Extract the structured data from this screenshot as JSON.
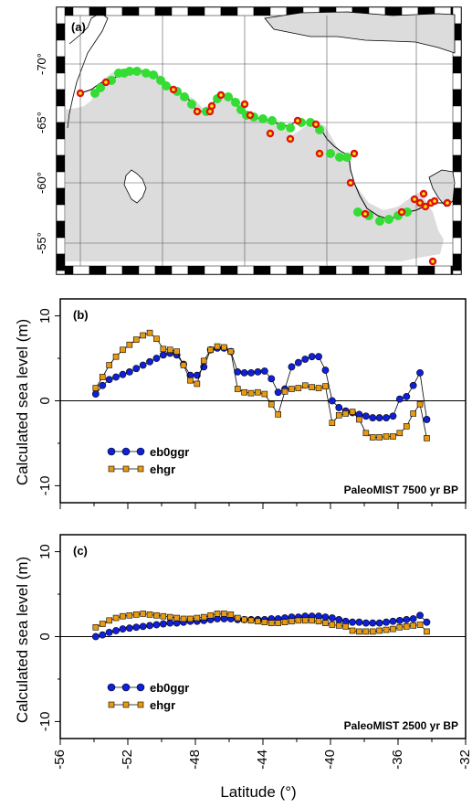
{
  "figure": {
    "panel_a_label": "(a)",
    "panel_b_label": "(b)",
    "panel_c_label": "(c)",
    "ylabel": "Calculated sea level (m)",
    "xlabel": "Latitude (°)"
  },
  "map": {
    "lat_labels": [
      "-70°",
      "-65°",
      "-60°",
      "-55°"
    ],
    "colors": {
      "land": "#dcdcdc",
      "sea": "#ffffff",
      "green_site": "#33dd33",
      "red_site": "#dd1111",
      "red_site_inner": "#ffee00"
    }
  },
  "chart_data": [
    {
      "type": "line",
      "panel": "(b)",
      "annotation": "PaleoMIST 7500 yr BP",
      "xlabel": "",
      "ylabel": "Calculated sea level (m)",
      "xlim": [
        -56,
        -32
      ],
      "ylim": [
        -12,
        12
      ],
      "yticks": [
        -10,
        0,
        10
      ],
      "series": [
        {
          "name": "eb0ggr",
          "marker": "circle",
          "color": "#1020d8",
          "x": [
            -53.9,
            -53.5,
            -53.1,
            -52.7,
            -52.3,
            -51.9,
            -51.5,
            -51.1,
            -50.7,
            -50.3,
            -49.9,
            -49.5,
            -49.1,
            -48.7,
            -48.3,
            -47.9,
            -47.5,
            -47.1,
            -46.7,
            -46.3,
            -45.9,
            -45.5,
            -45.1,
            -44.7,
            -44.3,
            -43.9,
            -43.5,
            -43.1,
            -42.7,
            -42.3,
            -41.9,
            -41.5,
            -41.1,
            -40.7,
            -40.3,
            -39.9,
            -39.5,
            -39.1,
            -38.7,
            -38.3,
            -37.9,
            -37.5,
            -37.1,
            -36.7,
            -36.3,
            -35.9,
            -35.5,
            -35.1,
            -34.7,
            -34.3
          ],
          "y": [
            0.8,
            1.8,
            2.5,
            2.8,
            3.1,
            3.4,
            3.8,
            4.2,
            4.6,
            5.0,
            5.4,
            5.6,
            5.4,
            4.3,
            3.0,
            3.0,
            4.0,
            6.0,
            6.2,
            6.2,
            5.8,
            3.4,
            3.3,
            3.3,
            3.4,
            3.5,
            2.6,
            1.0,
            1.4,
            4.0,
            4.5,
            4.9,
            5.2,
            5.2,
            3.6,
            0.0,
            -0.8,
            -1.2,
            -1.4,
            -1.6,
            -1.8,
            -2.0,
            -2.0,
            -2.0,
            -1.8,
            0.2,
            0.5,
            1.8,
            3.3,
            -2.2
          ]
        },
        {
          "name": "ehgr",
          "marker": "square",
          "color": "#e89a10",
          "x": [
            -53.9,
            -53.5,
            -53.1,
            -52.7,
            -52.3,
            -51.9,
            -51.5,
            -51.1,
            -50.7,
            -50.3,
            -49.9,
            -49.5,
            -49.1,
            -48.7,
            -48.3,
            -47.9,
            -47.5,
            -47.1,
            -46.7,
            -46.3,
            -45.9,
            -45.5,
            -45.1,
            -44.7,
            -44.3,
            -43.9,
            -43.5,
            -43.1,
            -42.7,
            -42.3,
            -41.9,
            -41.5,
            -41.1,
            -40.7,
            -40.3,
            -39.9,
            -39.5,
            -39.1,
            -38.7,
            -38.3,
            -37.9,
            -37.5,
            -37.1,
            -36.7,
            -36.3,
            -35.9,
            -35.5,
            -35.1,
            -34.7,
            -34.3
          ],
          "y": [
            1.5,
            2.8,
            4.2,
            5.2,
            6.0,
            6.6,
            7.2,
            7.7,
            8.0,
            7.3,
            6.1,
            6.0,
            5.8,
            4.2,
            2.4,
            2.0,
            4.7,
            6.0,
            6.4,
            6.3,
            5.8,
            1.4,
            1.0,
            0.9,
            1.0,
            0.8,
            -0.4,
            -1.6,
            1.1,
            1.4,
            1.5,
            1.8,
            1.6,
            1.5,
            1.7,
            -2.6,
            -1.7,
            -1.5,
            -1.3,
            -2.2,
            -3.8,
            -4.3,
            -4.3,
            -4.2,
            -4.2,
            -3.8,
            -3.0,
            -1.5,
            -0.4,
            -4.4
          ]
        }
      ]
    },
    {
      "type": "line",
      "panel": "(c)",
      "annotation": "PaleoMIST 2500 yr BP",
      "xlabel": "Latitude (°)",
      "ylabel": "Calculated sea level (m)",
      "xlim": [
        -56,
        -32
      ],
      "ylim": [
        -12,
        12
      ],
      "yticks": [
        -10,
        0,
        10
      ],
      "xticks": [
        -56,
        -52,
        -48,
        -44,
        -40,
        -36,
        -32
      ],
      "series": [
        {
          "name": "eb0ggr",
          "marker": "circle",
          "color": "#1020d8",
          "x": [
            -53.9,
            -53.5,
            -53.1,
            -52.7,
            -52.3,
            -51.9,
            -51.5,
            -51.1,
            -50.7,
            -50.3,
            -49.9,
            -49.5,
            -49.1,
            -48.7,
            -48.3,
            -47.9,
            -47.5,
            -47.1,
            -46.7,
            -46.3,
            -45.9,
            -45.5,
            -45.1,
            -44.7,
            -44.3,
            -43.9,
            -43.5,
            -43.1,
            -42.7,
            -42.3,
            -41.9,
            -41.5,
            -41.1,
            -40.7,
            -40.3,
            -39.9,
            -39.5,
            -39.1,
            -38.7,
            -38.3,
            -37.9,
            -37.5,
            -37.1,
            -36.7,
            -36.3,
            -35.9,
            -35.5,
            -35.1,
            -34.7,
            -34.3
          ],
          "y": [
            0.0,
            0.2,
            0.5,
            0.7,
            0.9,
            1.0,
            1.1,
            1.2,
            1.3,
            1.4,
            1.5,
            1.6,
            1.6,
            1.7,
            1.8,
            1.8,
            1.9,
            2.0,
            2.1,
            2.1,
            2.1,
            2.0,
            2.0,
            2.0,
            2.0,
            2.0,
            2.1,
            2.1,
            2.2,
            2.3,
            2.3,
            2.4,
            2.4,
            2.4,
            2.3,
            2.2,
            2.0,
            1.8,
            1.7,
            1.7,
            1.6,
            1.6,
            1.6,
            1.7,
            1.8,
            1.9,
            2.0,
            2.1,
            2.5,
            1.7
          ]
        },
        {
          "name": "ehgr",
          "marker": "square",
          "color": "#e89a10",
          "x": [
            -53.9,
            -53.5,
            -53.1,
            -52.7,
            -52.3,
            -51.9,
            -51.5,
            -51.1,
            -50.7,
            -50.3,
            -49.9,
            -49.5,
            -49.1,
            -48.7,
            -48.3,
            -47.9,
            -47.5,
            -47.1,
            -46.7,
            -46.3,
            -45.9,
            -45.5,
            -45.1,
            -44.7,
            -44.3,
            -43.9,
            -43.5,
            -43.1,
            -42.7,
            -42.3,
            -41.9,
            -41.5,
            -41.1,
            -40.7,
            -40.3,
            -39.9,
            -39.5,
            -39.1,
            -38.7,
            -38.3,
            -37.9,
            -37.5,
            -37.1,
            -36.7,
            -36.3,
            -35.9,
            -35.5,
            -35.1,
            -34.7,
            -34.3
          ],
          "y": [
            1.1,
            1.5,
            1.9,
            2.2,
            2.4,
            2.5,
            2.6,
            2.7,
            2.6,
            2.5,
            2.4,
            2.3,
            2.2,
            2.1,
            2.1,
            2.2,
            2.3,
            2.5,
            2.7,
            2.7,
            2.6,
            2.2,
            2.0,
            1.9,
            1.8,
            1.7,
            1.6,
            1.6,
            1.7,
            1.8,
            1.9,
            1.9,
            1.9,
            1.8,
            1.6,
            1.4,
            1.3,
            1.2,
            0.7,
            0.6,
            0.6,
            0.6,
            0.7,
            0.8,
            0.9,
            1.1,
            1.2,
            1.3,
            1.4,
            0.6
          ]
        }
      ]
    }
  ]
}
